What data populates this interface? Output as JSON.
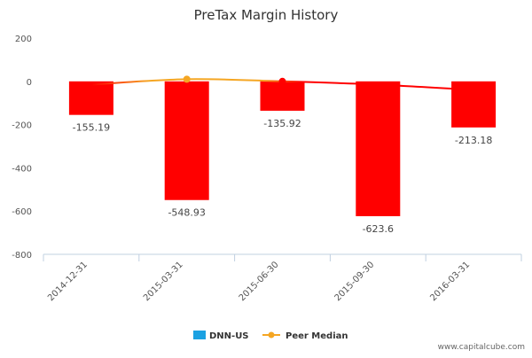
{
  "chart_data": {
    "type": "bar",
    "title": "PreTax Margin History",
    "categories": [
      "2014-12-31",
      "2015-03-31",
      "2015-06-30",
      "2015-09-30",
      "2016-03-31"
    ],
    "series": [
      {
        "name": "DNN-US",
        "type": "bar",
        "values": [
          -155.19,
          -548.93,
          -135.92,
          -623.6,
          -213.18
        ],
        "color": "#ff0000"
      },
      {
        "name": "Peer Median",
        "type": "line",
        "values": [
          -15,
          10,
          0,
          -15,
          -40
        ],
        "color": "#f5a623",
        "line_color": "#ff0000"
      }
    ],
    "data_labels": [
      "-155.19",
      "-548.93",
      "-135.92",
      "-623.6",
      "-213.18"
    ],
    "y_ticks": [
      "200",
      "0",
      "-200",
      "-400",
      "-600",
      "-800"
    ],
    "ylim": [
      -800,
      200
    ],
    "xlabel": "",
    "ylabel": "",
    "legend_position": "bottom",
    "grid": false,
    "legend_marker_color": "#1ba1e2"
  },
  "credit": "www.capitalcube.com"
}
